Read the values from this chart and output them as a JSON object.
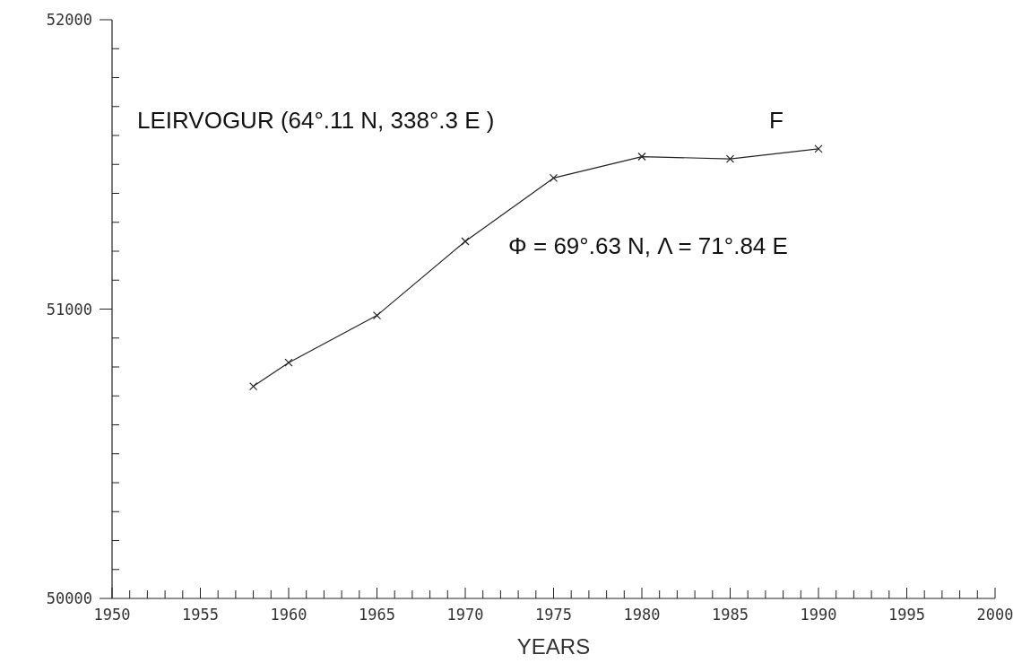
{
  "chart_data": {
    "type": "line",
    "xlabel": "YEARS",
    "x": [
      1958,
      1960,
      1965,
      1970,
      1975,
      1980,
      1985,
      1990
    ],
    "series": [
      {
        "color": "#222222",
        "values": [
          50733,
          50815,
          50978,
          51234,
          51453,
          51527,
          51519,
          51554
        ]
      }
    ],
    "xlim": [
      1950,
      2000
    ],
    "xticks": [
      1950,
      {
        "value": 1951,
        "label": null
      },
      {
        "value": 1952,
        "label": null
      },
      {
        "value": 1953,
        "label": null
      },
      {
        "value": 1954,
        "label": null
      },
      1955,
      {
        "value": 1956,
        "label": null
      },
      {
        "value": 1957,
        "label": null
      },
      {
        "value": 1958,
        "label": null
      },
      {
        "value": 1959,
        "label": null
      },
      1960,
      {
        "value": 1961,
        "label": null
      },
      {
        "value": 1962,
        "label": null
      },
      {
        "value": 1963,
        "label": null
      },
      {
        "value": 1964,
        "label": null
      },
      1965,
      {
        "value": 1966,
        "label": null
      },
      {
        "value": 1967,
        "label": null
      },
      {
        "value": 1968,
        "label": null
      },
      {
        "value": 1969,
        "label": null
      },
      1970,
      {
        "value": 1971,
        "label": null
      },
      {
        "value": 1972,
        "label": null
      },
      {
        "value": 1973,
        "label": null
      },
      {
        "value": 1974,
        "label": null
      },
      1975,
      {
        "value": 1976,
        "label": null
      },
      {
        "value": 1977,
        "label": null
      },
      {
        "value": 1978,
        "label": null
      },
      {
        "value": 1979,
        "label": null
      },
      1980,
      {
        "value": 1981,
        "label": null
      },
      {
        "value": 1982,
        "label": null
      },
      {
        "value": 1983,
        "label": null
      },
      {
        "value": 1984,
        "label": null
      },
      1985,
      {
        "value": 1986,
        "label": null
      },
      {
        "value": 1987,
        "label": null
      },
      {
        "value": 1988,
        "label": null
      },
      {
        "value": 1989,
        "label": null
      },
      1990,
      {
        "value": 1991,
        "label": null
      },
      {
        "value": 1992,
        "label": null
      },
      {
        "value": 1993,
        "label": null
      },
      {
        "value": 1994,
        "label": null
      },
      1995,
      {
        "value": 1996,
        "label": null
      },
      {
        "value": 1997,
        "label": null
      },
      {
        "value": 1998,
        "label": null
      },
      {
        "value": 1999,
        "label": null
      },
      2000
    ],
    "ylim": [
      50000,
      52000
    ],
    "yticks": [
      50000,
      {
        "value": 50100,
        "label": null
      },
      {
        "value": 50200,
        "label": null
      },
      {
        "value": 50300,
        "label": null
      },
      {
        "value": 50400,
        "label": null
      },
      {
        "value": 50500,
        "label": null
      },
      {
        "value": 50600,
        "label": null
      },
      {
        "value": 50700,
        "label": null
      },
      {
        "value": 50800,
        "label": null
      },
      {
        "value": 50900,
        "label": null
      },
      51000,
      {
        "value": 51100,
        "label": null
      },
      {
        "value": 51200,
        "label": null
      },
      {
        "value": 51300,
        "label": null
      },
      {
        "value": 51400,
        "label": null
      },
      {
        "value": 51500,
        "label": null
      },
      {
        "value": 51600,
        "label": null
      },
      {
        "value": 51700,
        "label": null
      },
      {
        "value": 51800,
        "label": null
      },
      {
        "value": 51900,
        "label": null
      },
      52000
    ],
    "marker": "cross",
    "grid": false,
    "annotations": [
      "LEIRVOGUR (64°.11 N, 338°.3 E )",
      "F",
      "Φ = 69°.63 N, Λ = 71°.84 E"
    ]
  }
}
